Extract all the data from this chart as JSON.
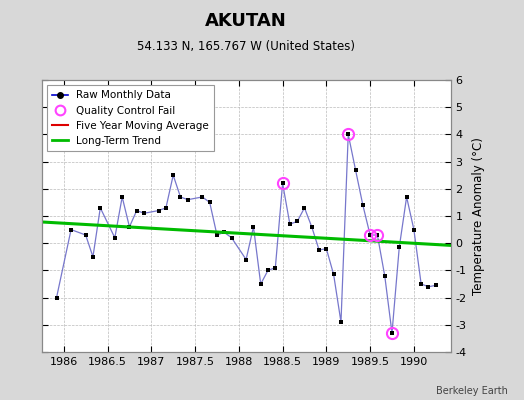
{
  "title": "AKUTAN",
  "subtitle": "54.133 N, 165.767 W (United States)",
  "credit": "Berkeley Earth",
  "ylabel": "Temperature Anomaly (°C)",
  "xlim": [
    1985.75,
    1990.42
  ],
  "ylim": [
    -4,
    6
  ],
  "yticks": [
    -4,
    -3,
    -2,
    -1,
    0,
    1,
    2,
    3,
    4,
    5,
    6
  ],
  "xticks": [
    1986,
    1986.5,
    1987,
    1987.5,
    1988,
    1988.5,
    1989,
    1989.5,
    1990
  ],
  "xtick_labels": [
    "1986",
    "1986.5",
    "1987",
    "1987.5",
    "1988",
    "1988.5",
    "1989",
    "1989.5",
    "1990"
  ],
  "bg_color": "#d8d8d8",
  "plot_bg_color": "#ffffff",
  "raw_x": [
    1985.917,
    1986.083,
    1986.25,
    1986.333,
    1986.417,
    1986.583,
    1986.667,
    1986.75,
    1986.833,
    1986.917,
    1987.083,
    1987.167,
    1987.25,
    1987.333,
    1987.417,
    1987.583,
    1987.667,
    1987.75,
    1987.833,
    1987.917,
    1988.083,
    1988.167,
    1988.25,
    1988.333,
    1988.417,
    1988.5,
    1988.583,
    1988.667,
    1988.75,
    1988.833,
    1988.917,
    1989.0,
    1989.083,
    1989.167,
    1989.25,
    1989.333,
    1989.417,
    1989.5,
    1989.583,
    1989.667,
    1989.75,
    1989.833,
    1989.917,
    1990.0,
    1990.083,
    1990.167,
    1990.25
  ],
  "raw_y": [
    -2.0,
    0.5,
    0.3,
    -0.5,
    1.3,
    0.2,
    1.7,
    0.6,
    1.2,
    1.1,
    1.2,
    1.3,
    2.5,
    1.7,
    1.6,
    1.7,
    1.5,
    0.3,
    0.4,
    0.2,
    -0.6,
    0.6,
    -1.5,
    -1.0,
    -0.9,
    2.2,
    0.7,
    0.8,
    1.3,
    0.6,
    -0.25,
    -0.2,
    -1.15,
    -2.9,
    4.0,
    2.7,
    1.4,
    0.3,
    0.3,
    -1.2,
    -3.3,
    -0.15,
    1.7,
    0.5,
    -1.5,
    -1.6,
    -1.55
  ],
  "qc_fail_x": [
    1988.5,
    1989.25,
    1989.5,
    1989.583,
    1989.75
  ],
  "qc_fail_y": [
    2.2,
    4.0,
    0.3,
    0.3,
    -3.3
  ],
  "trend_x": [
    1985.75,
    1990.42
  ],
  "trend_y": [
    0.78,
    -0.08
  ],
  "raw_line_color": "#7777cc",
  "raw_marker_color": "#000000",
  "qc_color": "#ff44ff",
  "trend_color": "#00bb00",
  "moving_avg_color": "#dd0000",
  "legend_line_color": "#0000cc"
}
